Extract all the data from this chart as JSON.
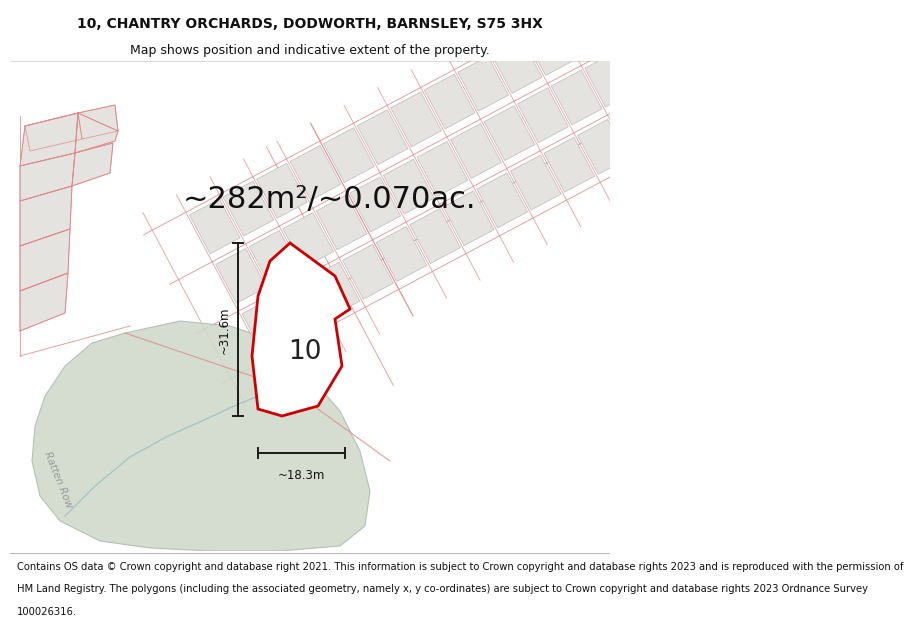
{
  "title_line1": "10, CHANTRY ORCHARDS, DODWORTH, BARNSLEY, S75 3HX",
  "title_line2": "Map shows position and indicative extent of the property.",
  "footer_lines": [
    "Contains OS data © Crown copyright and database right 2021. This information is subject to Crown copyright and database rights 2023 and is reproduced with the permission of",
    "HM Land Registry. The polygons (including the associated geometry, namely x, y co-ordinates) are subject to Crown copyright and database rights 2023 Ordnance Survey",
    "100026316."
  ],
  "area_label": "~282m²/~0.070ac.",
  "number_label": "10",
  "dim_vertical": "~31.6m",
  "dim_horizontal": "~18.3m",
  "ratten_row_label": "Ratten Row",
  "background_color": "#ffffff",
  "map_bg": "#f7f7f7",
  "plot_fill": "#ffffff",
  "green_fill": "#cdd8c8",
  "road_lines_color": "#e08888",
  "plot_outline_color": "#cc0000",
  "building_fill": "#e5e3e0",
  "dim_line_color": "#1a1a1a",
  "title_fontsize": 10,
  "subtitle_fontsize": 9,
  "area_fontsize": 22,
  "number_fontsize": 19,
  "footer_fontsize": 7.2,
  "dim_fontsize": 8.5
}
